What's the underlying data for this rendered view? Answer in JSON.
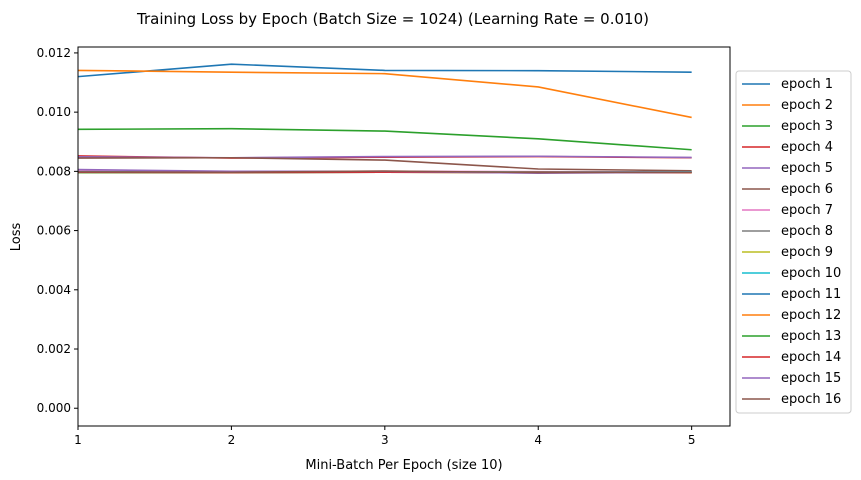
{
  "chart_data": {
    "type": "line",
    "title": "Training Loss by Epoch (Batch Size = 1024) (Learning Rate = 0.010)",
    "xlabel": "Mini-Batch Per Epoch (size 10)",
    "ylabel": "Loss",
    "x": [
      1,
      2,
      3,
      4,
      5
    ],
    "xlim": [
      1,
      5.25
    ],
    "ylim": [
      -0.0006,
      0.0122
    ],
    "xticks": [
      "1",
      "2",
      "3",
      "4",
      "5"
    ],
    "yticks": [
      "0.000",
      "0.002",
      "0.004",
      "0.006",
      "0.008",
      "0.010",
      "0.012"
    ],
    "legend_position": "outside-right",
    "grid": false,
    "series": [
      {
        "name": "epoch 1",
        "color": "#1f77b4",
        "values": [
          0.0112,
          0.01162,
          0.01141,
          0.0114,
          0.01135
        ]
      },
      {
        "name": "epoch 2",
        "color": "#ff7f0e",
        "values": [
          0.01141,
          0.01135,
          0.0113,
          0.01085,
          0.00982
        ]
      },
      {
        "name": "epoch 3",
        "color": "#2ca02c",
        "values": [
          0.00942,
          0.00944,
          0.00936,
          0.0091,
          0.00873
        ]
      },
      {
        "name": "epoch 4",
        "color": "#d62728",
        "values": [
          0.00852,
          0.00845,
          0.00848,
          0.0085,
          0.00846
        ]
      },
      {
        "name": "epoch 5",
        "color": "#9467bd",
        "values": [
          0.00849,
          0.00846,
          0.0085,
          0.00851,
          0.00847
        ]
      },
      {
        "name": "epoch 6",
        "color": "#8c564b",
        "values": [
          0.00845,
          0.00846,
          0.00838,
          0.00808,
          0.00802
        ]
      },
      {
        "name": "epoch 7",
        "color": "#e377c2",
        "values": [
          0.008,
          0.00798,
          0.008,
          0.00799,
          0.00798
        ]
      },
      {
        "name": "epoch 8",
        "color": "#7f7f7f",
        "values": [
          0.00799,
          0.00797,
          0.00799,
          0.00798,
          0.00797
        ]
      },
      {
        "name": "epoch 9",
        "color": "#bcbd22",
        "values": [
          0.00797,
          0.00797,
          0.00798,
          0.00797,
          0.00797
        ]
      },
      {
        "name": "epoch 10",
        "color": "#17becf",
        "values": [
          0.00798,
          0.00796,
          0.00798,
          0.00797,
          0.00798
        ]
      },
      {
        "name": "epoch 11",
        "color": "#1f77b4",
        "values": [
          0.00797,
          0.00796,
          0.00797,
          0.00797,
          0.00797
        ]
      },
      {
        "name": "epoch 12",
        "color": "#ff7f0e",
        "values": [
          0.00796,
          0.00796,
          0.00797,
          0.00796,
          0.00796
        ]
      },
      {
        "name": "epoch 13",
        "color": "#2ca02c",
        "values": [
          0.00796,
          0.00796,
          0.00797,
          0.00796,
          0.00796
        ]
      },
      {
        "name": "epoch 14",
        "color": "#d62728",
        "values": [
          0.00797,
          0.00796,
          0.00797,
          0.00796,
          0.00796
        ]
      },
      {
        "name": "epoch 15",
        "color": "#9467bd",
        "values": [
          0.00806,
          0.008,
          0.008,
          0.00794,
          0.00797
        ]
      },
      {
        "name": "epoch 16",
        "color": "#8c564b",
        "values": [
          0.00798,
          0.00797,
          0.00801,
          0.00796,
          0.00797
        ]
      }
    ]
  }
}
